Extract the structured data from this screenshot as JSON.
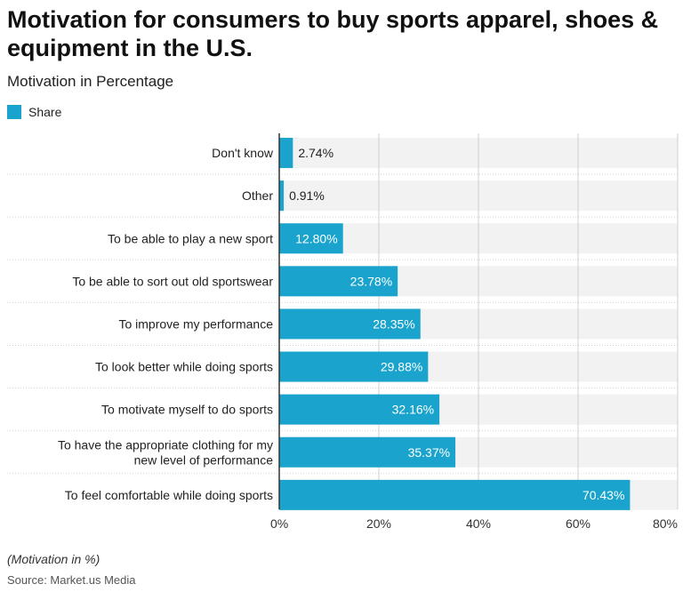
{
  "title": "Motivation for consumers to buy sports apparel, shoes & equipment in the U.S.",
  "subtitle": "Motivation in Percentage",
  "footnote": "(Motivation in %)",
  "source": "Source: Market.us Media",
  "colors": {
    "bar": "#1aa3cc",
    "track": "#f2f2f2",
    "grid": "#cfcfcf",
    "axis": "#333333"
  },
  "chart_data": {
    "type": "bar",
    "orientation": "horizontal",
    "categories": [
      "Don't know",
      "Other",
      "To be able to play a new sport",
      "To be able to sort out old sportswear",
      "To improve my performance",
      "To look better while doing sports",
      "To motivate myself to do sports",
      "To have the appropriate clothing for my new level of performance",
      "To feel comfortable while doing sports"
    ],
    "series": [
      {
        "name": "Share",
        "values": [
          2.74,
          0.91,
          12.8,
          23.78,
          28.35,
          29.88,
          32.16,
          35.37,
          70.43
        ],
        "labels": [
          "2.74%",
          "0.91%",
          "12.80%",
          "23.78%",
          "28.35%",
          "29.88%",
          "32.16%",
          "35.37%",
          "70.43%"
        ]
      }
    ],
    "xlim": [
      0,
      80
    ],
    "xticks": [
      0,
      20,
      40,
      60,
      80
    ],
    "xtick_labels": [
      "0%",
      "20%",
      "40%",
      "60%",
      "80%"
    ],
    "grid": true,
    "legend_position": "top-left"
  }
}
